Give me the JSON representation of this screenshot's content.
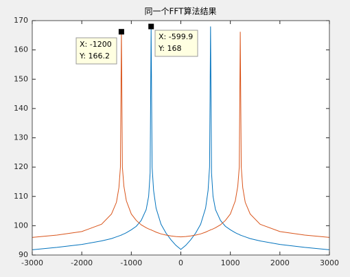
{
  "chart_data": {
    "type": "line",
    "title": "同一个FFT算法结果",
    "x": [
      -3000,
      -2500,
      -2000,
      -1600,
      -1400,
      -1300,
      -1250,
      -1220,
      -1200,
      -1180,
      -1150,
      -1100,
      -1000,
      -900,
      -800,
      -700,
      -650,
      -620,
      -600,
      -580,
      -550,
      -500,
      -400,
      -300,
      -200,
      -100,
      0,
      100,
      200,
      300,
      400,
      500,
      550,
      580,
      600,
      620,
      650,
      700,
      800,
      900,
      1000,
      1100,
      1150,
      1180,
      1200,
      1220,
      1250,
      1300,
      1400,
      1600,
      2000,
      2500,
      3000
    ],
    "series": [
      {
        "color": "#0072BD",
        "values": [
          91.8,
          92.6,
          93.6,
          94.8,
          95.6,
          96.2,
          96.5,
          96.7,
          96.8,
          97,
          97.2,
          97.6,
          98.6,
          99.8,
          101.8,
          105.5,
          110,
          118,
          168,
          120,
          112,
          106,
          100.5,
          97.5,
          95.2,
          93.3,
          91.9,
          93.3,
          95.2,
          97.5,
          100.5,
          106,
          112,
          120,
          168,
          118,
          110,
          105.5,
          101.8,
          99.8,
          98.6,
          97.6,
          97.2,
          97,
          96.8,
          96.7,
          96.5,
          96.2,
          95.6,
          94.8,
          93.6,
          92.6,
          91.8
        ]
      },
      {
        "color": "#D95319",
        "values": [
          96,
          96.8,
          98,
          100.5,
          104,
          108,
          113,
          120,
          166.2,
          120,
          113.5,
          108.5,
          104,
          101.8,
          100.3,
          99.3,
          98.9,
          98.7,
          98.6,
          98.4,
          98.2,
          97.8,
          97.2,
          96.8,
          96.5,
          96.3,
          96.2,
          96.3,
          96.5,
          96.8,
          97.2,
          97.8,
          98.2,
          98.4,
          98.6,
          98.7,
          98.9,
          99.3,
          100.3,
          101.8,
          104,
          108.5,
          113.5,
          120,
          166.2,
          120,
          113,
          108,
          104,
          100.5,
          98,
          96.8,
          96
        ]
      }
    ],
    "annotations": [
      {
        "lines": [
          "X: -1200",
          "Y: 166.2"
        ]
      },
      {
        "lines": [
          "X: -599.9",
          "Y: 168"
        ]
      }
    ],
    "xlim": [
      -3000,
      3000
    ],
    "xticks": [
      -3000,
      -2000,
      -1000,
      0,
      1000,
      2000,
      3000
    ],
    "ylim": [
      90,
      170
    ],
    "yticks": [
      90,
      100,
      110,
      120,
      130,
      140,
      150,
      160,
      170
    ]
  }
}
